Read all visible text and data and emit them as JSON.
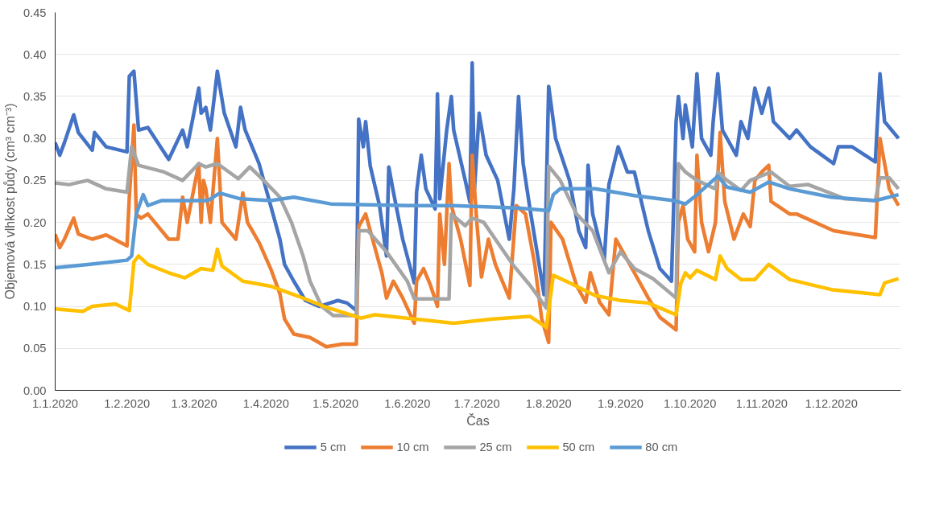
{
  "chart_data": {
    "type": "line",
    "xlabel": "Čas",
    "ylabel": "Objemová vlhkost půdy (cm³ cm⁻³)",
    "xlim": [
      "2020-01-01",
      "2020-12-31"
    ],
    "ylim": [
      0,
      0.45
    ],
    "xticks": [
      {
        "value": "2020-01-01",
        "label": "1.1.2020"
      },
      {
        "value": "2020-02-01",
        "label": "1.2.2020"
      },
      {
        "value": "2020-03-01",
        "label": "1.3.2020"
      },
      {
        "value": "2020-04-01",
        "label": "1.4.2020"
      },
      {
        "value": "2020-05-01",
        "label": "1.5.2020"
      },
      {
        "value": "2020-06-01",
        "label": "1.6.2020"
      },
      {
        "value": "2020-07-01",
        "label": "1.7.2020"
      },
      {
        "value": "2020-08-01",
        "label": "1.8.2020"
      },
      {
        "value": "2020-09-01",
        "label": "1.9.2020"
      },
      {
        "value": "2020-10-01",
        "label": "1.10.2020"
      },
      {
        "value": "2020-11-01",
        "label": "1.11.2020"
      },
      {
        "value": "2020-12-01",
        "label": "1.12.2020"
      }
    ],
    "yticks": [
      {
        "value": 0,
        "label": "0.00"
      },
      {
        "value": 0.05,
        "label": "0.05"
      },
      {
        "value": 0.1,
        "label": "0.10"
      },
      {
        "value": 0.15,
        "label": "0.15"
      },
      {
        "value": 0.2,
        "label": "0.20"
      },
      {
        "value": 0.25,
        "label": "0.25"
      },
      {
        "value": 0.3,
        "label": "0.30"
      },
      {
        "value": 0.35,
        "label": "0.35"
      },
      {
        "value": 0.4,
        "label": "0.40"
      },
      {
        "value": 0.45,
        "label": "0.45"
      }
    ],
    "grid": "y",
    "legend": "bottom",
    "line_style": "solid",
    "series": [
      {
        "name": "5 cm",
        "color": "#4472c4",
        "x": [
          "2020-01-01",
          "2020-01-03",
          "2020-01-05",
          "2020-01-09",
          "2020-01-11",
          "2020-01-17",
          "2020-01-18",
          "2020-01-23",
          "2020-02-01",
          "2020-02-02",
          "2020-02-04",
          "2020-02-06",
          "2020-02-10",
          "2020-02-19",
          "2020-02-25",
          "2020-02-27",
          "2020-03-03",
          "2020-03-04",
          "2020-03-06",
          "2020-03-08",
          "2020-03-11",
          "2020-03-14",
          "2020-03-19",
          "2020-03-21",
          "2020-03-23",
          "2020-03-29",
          "2020-04-03",
          "2020-04-07",
          "2020-04-09",
          "2020-04-13",
          "2020-04-18",
          "2020-04-24",
          "2020-05-02",
          "2020-05-06",
          "2020-05-10",
          "2020-05-11",
          "2020-05-13",
          "2020-05-14",
          "2020-05-16",
          "2020-05-20",
          "2020-05-23",
          "2020-05-24",
          "2020-05-26",
          "2020-05-30",
          "2020-06-04",
          "2020-06-05",
          "2020-06-07",
          "2020-06-09",
          "2020-06-13",
          "2020-06-14",
          "2020-06-15",
          "2020-06-18",
          "2020-06-20",
          "2020-06-21",
          "2020-06-26",
          "2020-06-28",
          "2020-06-29",
          "2020-06-30",
          "2020-07-02",
          "2020-07-05",
          "2020-07-10",
          "2020-07-15",
          "2020-07-17",
          "2020-07-19",
          "2020-07-21",
          "2020-07-24",
          "2020-07-30",
          "2020-08-01",
          "2020-08-04",
          "2020-08-10",
          "2020-08-14",
          "2020-08-17",
          "2020-08-18",
          "2020-08-20",
          "2020-08-25",
          "2020-08-27",
          "2020-08-31",
          "2020-09-04",
          "2020-09-07",
          "2020-09-13",
          "2020-09-18",
          "2020-09-23",
          "2020-09-25",
          "2020-09-26",
          "2020-09-28",
          "2020-09-29",
          "2020-10-02",
          "2020-10-04",
          "2020-10-06",
          "2020-10-10",
          "2020-10-11",
          "2020-10-13",
          "2020-10-15",
          "2020-10-21",
          "2020-10-23",
          "2020-10-26",
          "2020-10-29",
          "2020-11-01",
          "2020-11-04",
          "2020-11-06",
          "2020-11-13",
          "2020-11-16",
          "2020-11-22",
          "2020-12-02",
          "2020-12-04",
          "2020-12-10",
          "2020-12-20",
          "2020-12-22",
          "2020-12-24",
          "2020-12-30"
        ],
        "values": [
          0.295,
          0.28,
          0.295,
          0.328,
          0.307,
          0.286,
          0.307,
          0.29,
          0.284,
          0.374,
          0.38,
          0.31,
          0.313,
          0.275,
          0.31,
          0.29,
          0.36,
          0.33,
          0.337,
          0.31,
          0.38,
          0.33,
          0.29,
          0.337,
          0.31,
          0.27,
          0.22,
          0.18,
          0.15,
          0.13,
          0.107,
          0.1,
          0.107,
          0.104,
          0.095,
          0.323,
          0.29,
          0.32,
          0.267,
          0.22,
          0.16,
          0.266,
          0.236,
          0.18,
          0.128,
          0.236,
          0.28,
          0.24,
          0.216,
          0.353,
          0.228,
          0.31,
          0.35,
          0.31,
          0.25,
          0.224,
          0.39,
          0.24,
          0.33,
          0.28,
          0.25,
          0.18,
          0.24,
          0.35,
          0.27,
          0.215,
          0.114,
          0.362,
          0.3,
          0.25,
          0.19,
          0.17,
          0.268,
          0.21,
          0.155,
          0.245,
          0.29,
          0.26,
          0.26,
          0.19,
          0.145,
          0.13,
          0.32,
          0.35,
          0.3,
          0.34,
          0.29,
          0.377,
          0.3,
          0.28,
          0.32,
          0.377,
          0.31,
          0.28,
          0.32,
          0.3,
          0.36,
          0.33,
          0.36,
          0.32,
          0.3,
          0.31,
          0.29,
          0.27,
          0.29,
          0.29,
          0.272,
          0.377,
          0.32,
          0.3
        ]
      },
      {
        "name": "10 cm",
        "color": "#ed7d31",
        "x": [
          "2020-01-01",
          "2020-01-03",
          "2020-01-05",
          "2020-01-09",
          "2020-01-11",
          "2020-01-17",
          "2020-01-23",
          "2020-02-01",
          "2020-02-02",
          "2020-02-04",
          "2020-02-05",
          "2020-02-07",
          "2020-02-10",
          "2020-02-19",
          "2020-02-23",
          "2020-02-25",
          "2020-02-27",
          "2020-03-03",
          "2020-03-04",
          "2020-03-05",
          "2020-03-06",
          "2020-03-08",
          "2020-03-11",
          "2020-03-13",
          "2020-03-19",
          "2020-03-22",
          "2020-03-24",
          "2020-03-29",
          "2020-04-03",
          "2020-04-07",
          "2020-04-09",
          "2020-04-13",
          "2020-04-20",
          "2020-04-27",
          "2020-05-04",
          "2020-05-10",
          "2020-05-11",
          "2020-05-14",
          "2020-05-17",
          "2020-05-21",
          "2020-05-23",
          "2020-05-26",
          "2020-05-30",
          "2020-06-04",
          "2020-06-05",
          "2020-06-08",
          "2020-06-11",
          "2020-06-14",
          "2020-06-15",
          "2020-06-17",
          "2020-06-19",
          "2020-06-20",
          "2020-06-24",
          "2020-06-28",
          "2020-06-29",
          "2020-07-01",
          "2020-07-03",
          "2020-07-06",
          "2020-07-09",
          "2020-07-15",
          "2020-07-18",
          "2020-07-22",
          "2020-07-26",
          "2020-07-29",
          "2020-08-01",
          "2020-08-02",
          "2020-08-07",
          "2020-08-13",
          "2020-08-17",
          "2020-08-19",
          "2020-08-23",
          "2020-08-27",
          "2020-08-30",
          "2020-09-02",
          "2020-09-07",
          "2020-09-13",
          "2020-09-18",
          "2020-09-25",
          "2020-09-26",
          "2020-09-28",
          "2020-09-30",
          "2020-10-03",
          "2020-10-04",
          "2020-10-06",
          "2020-10-09",
          "2020-10-12",
          "2020-10-14",
          "2020-10-16",
          "2020-10-20",
          "2020-10-24",
          "2020-10-27",
          "2020-10-29",
          "2020-11-01",
          "2020-11-04",
          "2020-11-05",
          "2020-11-13",
          "2020-11-16",
          "2020-12-02",
          "2020-12-20",
          "2020-12-22",
          "2020-12-24",
          "2020-12-26",
          "2020-12-30"
        ],
        "values": [
          0.186,
          0.17,
          0.18,
          0.205,
          0.186,
          0.18,
          0.185,
          0.172,
          0.23,
          0.316,
          0.21,
          0.205,
          0.21,
          0.18,
          0.18,
          0.23,
          0.2,
          0.27,
          0.2,
          0.25,
          0.24,
          0.2,
          0.3,
          0.2,
          0.18,
          0.235,
          0.2,
          0.176,
          0.145,
          0.115,
          0.085,
          0.067,
          0.063,
          0.052,
          0.055,
          0.055,
          0.195,
          0.21,
          0.18,
          0.14,
          0.11,
          0.13,
          0.11,
          0.08,
          0.13,
          0.145,
          0.125,
          0.1,
          0.21,
          0.15,
          0.27,
          0.22,
          0.18,
          0.125,
          0.28,
          0.2,
          0.135,
          0.18,
          0.15,
          0.11,
          0.22,
          0.21,
          0.15,
          0.085,
          0.057,
          0.2,
          0.18,
          0.125,
          0.105,
          0.14,
          0.105,
          0.09,
          0.18,
          0.165,
          0.14,
          0.11,
          0.087,
          0.072,
          0.2,
          0.22,
          0.18,
          0.165,
          0.28,
          0.2,
          0.165,
          0.2,
          0.307,
          0.225,
          0.18,
          0.21,
          0.195,
          0.25,
          0.26,
          0.268,
          0.225,
          0.21,
          0.21,
          0.19,
          0.182,
          0.3,
          0.27,
          0.24,
          0.22
        ]
      },
      {
        "name": "25 cm",
        "color": "#a5a5a5",
        "x": [
          "2020-01-01",
          "2020-01-07",
          "2020-01-15",
          "2020-01-23",
          "2020-02-01",
          "2020-02-03",
          "2020-02-06",
          "2020-02-17",
          "2020-02-25",
          "2020-03-03",
          "2020-03-06",
          "2020-03-11",
          "2020-03-20",
          "2020-03-25",
          "2020-03-31",
          "2020-04-07",
          "2020-04-12",
          "2020-04-17",
          "2020-04-20",
          "2020-04-25",
          "2020-04-30",
          "2020-05-10",
          "2020-05-11",
          "2020-05-15",
          "2020-05-23",
          "2020-06-01",
          "2020-06-04",
          "2020-06-19",
          "2020-06-20",
          "2020-06-26",
          "2020-06-29",
          "2020-07-04",
          "2020-07-10",
          "2020-07-17",
          "2020-07-24",
          "2020-07-31",
          "2020-08-01",
          "2020-08-06",
          "2020-08-13",
          "2020-08-20",
          "2020-08-27",
          "2020-09-01",
          "2020-09-07",
          "2020-09-15",
          "2020-09-25",
          "2020-09-26",
          "2020-09-29",
          "2020-10-04",
          "2020-10-12",
          "2020-10-13",
          "2020-10-17",
          "2020-10-23",
          "2020-10-27",
          "2020-11-05",
          "2020-11-13",
          "2020-11-21",
          "2020-12-07",
          "2020-12-20",
          "2020-12-22",
          "2020-12-26",
          "2020-12-30"
        ],
        "values": [
          0.247,
          0.245,
          0.25,
          0.24,
          0.236,
          0.29,
          0.268,
          0.26,
          0.25,
          0.27,
          0.266,
          0.27,
          0.252,
          0.266,
          0.25,
          0.23,
          0.2,
          0.16,
          0.13,
          0.1,
          0.089,
          0.089,
          0.19,
          0.19,
          0.165,
          0.13,
          0.109,
          0.109,
          0.21,
          0.196,
          0.205,
          0.2,
          0.176,
          0.148,
          0.125,
          0.098,
          0.267,
          0.25,
          0.21,
          0.19,
          0.14,
          0.165,
          0.145,
          0.133,
          0.11,
          0.27,
          0.26,
          0.25,
          0.24,
          0.26,
          0.25,
          0.238,
          0.25,
          0.26,
          0.243,
          0.245,
          0.228,
          0.226,
          0.253,
          0.253,
          0.24
        ]
      },
      {
        "name": "50 cm",
        "color": "#ffc000",
        "x": [
          "2020-01-01",
          "2020-01-13",
          "2020-01-17",
          "2020-01-27",
          "2020-02-02",
          "2020-02-04",
          "2020-02-06",
          "2020-02-10",
          "2020-02-19",
          "2020-02-26",
          "2020-03-04",
          "2020-03-09",
          "2020-03-11",
          "2020-03-13",
          "2020-03-22",
          "2020-04-03",
          "2020-04-15",
          "2020-04-26",
          "2020-05-12",
          "2020-05-18",
          "2020-06-04",
          "2020-06-21",
          "2020-07-08",
          "2020-07-24",
          "2020-07-31",
          "2020-08-03",
          "2020-08-10",
          "2020-08-21",
          "2020-09-01",
          "2020-09-13",
          "2020-09-25",
          "2020-09-27",
          "2020-09-29",
          "2020-10-01",
          "2020-10-04",
          "2020-10-12",
          "2020-10-14",
          "2020-10-17",
          "2020-10-23",
          "2020-10-29",
          "2020-11-04",
          "2020-11-13",
          "2020-12-01",
          "2020-12-22",
          "2020-12-24",
          "2020-12-30"
        ],
        "values": [
          0.097,
          0.094,
          0.1,
          0.103,
          0.095,
          0.153,
          0.16,
          0.15,
          0.14,
          0.134,
          0.145,
          0.143,
          0.168,
          0.148,
          0.13,
          0.124,
          0.112,
          0.1,
          0.086,
          0.09,
          0.085,
          0.08,
          0.085,
          0.088,
          0.075,
          0.137,
          0.128,
          0.113,
          0.107,
          0.104,
          0.09,
          0.127,
          0.14,
          0.134,
          0.143,
          0.132,
          0.16,
          0.145,
          0.132,
          0.132,
          0.15,
          0.132,
          0.12,
          0.114,
          0.128,
          0.133
        ]
      },
      {
        "name": "80 cm",
        "color": "#5b9bd5",
        "x": [
          "2020-01-01",
          "2020-01-16",
          "2020-02-01",
          "2020-02-03",
          "2020-02-05",
          "2020-02-08",
          "2020-02-10",
          "2020-02-16",
          "2020-02-25",
          "2020-03-07",
          "2020-03-12",
          "2020-03-21",
          "2020-04-03",
          "2020-04-13",
          "2020-04-29",
          "2020-06-04",
          "2020-06-21",
          "2020-07-19",
          "2020-08-01",
          "2020-08-03",
          "2020-08-06",
          "2020-08-21",
          "2020-09-07",
          "2020-09-24",
          "2020-09-29",
          "2020-10-04",
          "2020-10-13",
          "2020-10-17",
          "2020-10-27",
          "2020-11-04",
          "2020-11-13",
          "2020-12-01",
          "2020-12-20",
          "2020-12-30"
        ],
        "values": [
          0.146,
          0.15,
          0.155,
          0.16,
          0.21,
          0.233,
          0.22,
          0.226,
          0.226,
          0.226,
          0.235,
          0.228,
          0.226,
          0.23,
          0.222,
          0.22,
          0.22,
          0.217,
          0.214,
          0.233,
          0.24,
          0.24,
          0.232,
          0.226,
          0.222,
          0.233,
          0.255,
          0.242,
          0.236,
          0.248,
          0.24,
          0.23,
          0.226,
          0.233
        ]
      }
    ]
  }
}
